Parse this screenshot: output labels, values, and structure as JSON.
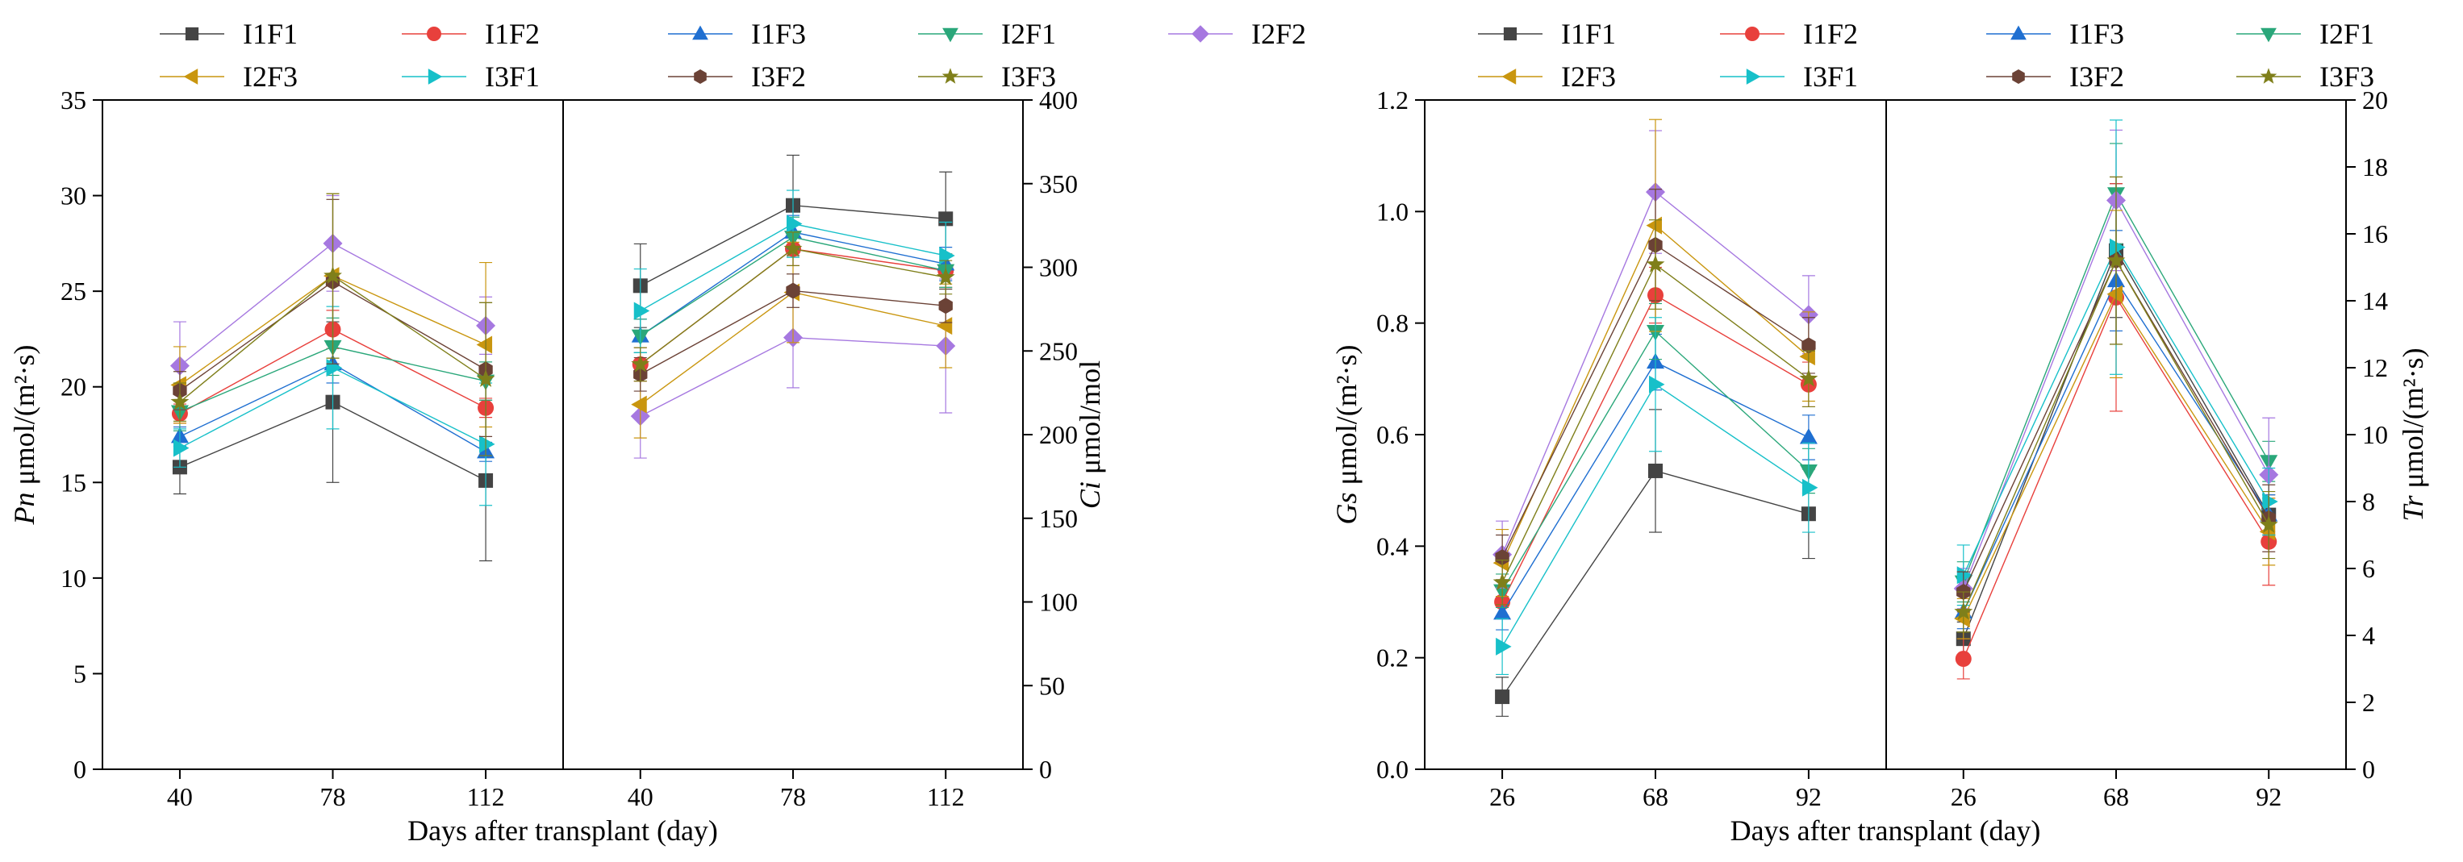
{
  "legend": {
    "series": [
      {
        "name": "I1F1",
        "color": "#444444",
        "marker": "square"
      },
      {
        "name": "I1F2",
        "color": "#e8403c",
        "marker": "circle"
      },
      {
        "name": "I1F3",
        "color": "#1f6fd1",
        "marker": "triangle-up"
      },
      {
        "name": "I2F1",
        "color": "#2aa77a",
        "marker": "triangle-down"
      },
      {
        "name": "I2F2",
        "color": "#a678e0",
        "marker": "diamond"
      },
      {
        "name": "I2F3",
        "color": "#c9960f",
        "marker": "triangle-left"
      },
      {
        "name": "I3F1",
        "color": "#17c0c9",
        "marker": "triangle-right"
      },
      {
        "name": "I3F2",
        "color": "#6b4236",
        "marker": "hexagon"
      },
      {
        "name": "I3F3",
        "color": "#7f7f1a",
        "marker": "star"
      }
    ]
  },
  "chart_data": [
    {
      "type": "line",
      "title": "",
      "xlabel": "Days after transplant (day)",
      "left_panel": {
        "ylabel_italic": "Pn",
        "ylabel_unit": "μmol/(m²·s)",
        "ylim": [
          0,
          35
        ],
        "yticks": [
          0,
          5,
          10,
          15,
          20,
          25,
          30,
          35
        ],
        "categories": [
          "40",
          "78",
          "112"
        ],
        "series": [
          {
            "name": "I1F1",
            "values": [
              15.8,
              19.2,
              15.1
            ],
            "errors": [
              1.4,
              4.2,
              4.2
            ]
          },
          {
            "name": "I1F2",
            "values": [
              18.6,
              23.0,
              18.9
            ],
            "errors": [
              0.5,
              1.0,
              0.5
            ]
          },
          {
            "name": "I1F3",
            "values": [
              17.4,
              21.2,
              16.6
            ],
            "errors": [
              0.5,
              1.0,
              0.5
            ]
          },
          {
            "name": "I2F1",
            "values": [
              18.7,
              22.1,
              20.3
            ],
            "errors": [
              1.0,
              1.5,
              1.0
            ]
          },
          {
            "name": "I2F2",
            "values": [
              21.1,
              27.5,
              23.2
            ],
            "errors": [
              2.3,
              2.5,
              1.5
            ]
          },
          {
            "name": "I2F3",
            "values": [
              20.1,
              25.8,
              22.2
            ],
            "errors": [
              2.0,
              4.3,
              4.3
            ]
          },
          {
            "name": "I3F1",
            "values": [
              16.8,
              21.0,
              17.0
            ],
            "errors": [
              1.0,
              3.2,
              3.2
            ]
          },
          {
            "name": "I3F2",
            "values": [
              19.8,
              25.5,
              20.9
            ],
            "errors": [
              1.0,
              4.3,
              3.5
            ]
          },
          {
            "name": "I3F3",
            "values": [
              19.2,
              25.8,
              20.4
            ],
            "errors": [
              1.0,
              4.3,
              4.0
            ]
          }
        ]
      },
      "right_panel": {
        "ylabel_italic": "Ci",
        "ylabel_unit": "μmol/mol",
        "ylim": [
          0,
          400
        ],
        "yticks": [
          0,
          50,
          100,
          150,
          200,
          250,
          300,
          350,
          400
        ],
        "categories": [
          "40",
          "78",
          "112"
        ],
        "series": [
          {
            "name": "I1F1",
            "values": [
              289,
              337,
              329
            ],
            "errors": [
              25,
              30,
              28
            ]
          },
          {
            "name": "I1F2",
            "values": [
              242,
              311,
              298
            ],
            "errors": [
              10,
              10,
              10
            ]
          },
          {
            "name": "I1F3",
            "values": [
              259,
              321,
              302
            ],
            "errors": [
              10,
              10,
              10
            ]
          },
          {
            "name": "I2F1",
            "values": [
              259,
              318,
              298
            ],
            "errors": [
              10,
              12,
              10
            ]
          },
          {
            "name": "I2F2",
            "values": [
              211,
              258,
              253
            ],
            "errors": [
              25,
              30,
              40
            ]
          },
          {
            "name": "I2F3",
            "values": [
              218,
              285,
              265
            ],
            "errors": [
              20,
              30,
              25
            ]
          },
          {
            "name": "I3F1",
            "values": [
              274,
              326,
              307
            ],
            "errors": [
              25,
              20,
              20
            ]
          },
          {
            "name": "I3F2",
            "values": [
              236,
              286,
              277
            ],
            "errors": [
              10,
              10,
              10
            ]
          },
          {
            "name": "I3F3",
            "values": [
              242,
              311,
              294
            ],
            "errors": [
              10,
              10,
              10
            ]
          }
        ]
      }
    },
    {
      "type": "line",
      "title": "",
      "xlabel": "Days after transplant (day)",
      "left_panel": {
        "ylabel_italic": "Gs",
        "ylabel_unit": "μmol/(m²·s)",
        "ylim": [
          0,
          1.2
        ],
        "yticks": [
          0.0,
          0.2,
          0.4,
          0.6,
          0.8,
          1.0,
          1.2
        ],
        "ytick_labels": [
          "0.0",
          "0.2",
          "0.4",
          "0.6",
          "0.8",
          "1.0",
          "1.2"
        ],
        "categories": [
          "26",
          "68",
          "92"
        ],
        "series": [
          {
            "name": "I1F1",
            "values": [
              0.13,
              0.535,
              0.458
            ],
            "errors": [
              0.035,
              0.11,
              0.08
            ]
          },
          {
            "name": "I1F2",
            "values": [
              0.3,
              0.85,
              0.69
            ],
            "errors": [
              0.03,
              0.05,
              0.04
            ]
          },
          {
            "name": "I1F3",
            "values": [
              0.28,
              0.73,
              0.595
            ],
            "errors": [
              0.03,
              0.05,
              0.04
            ]
          },
          {
            "name": "I2F1",
            "values": [
              0.32,
              0.785,
              0.535
            ],
            "errors": [
              0.03,
              0.05,
              0.04
            ]
          },
          {
            "name": "I2F2",
            "values": [
              0.385,
              1.035,
              0.815
            ],
            "errors": [
              0.06,
              0.11,
              0.07
            ]
          },
          {
            "name": "I2F3",
            "values": [
              0.37,
              0.975,
              0.74
            ],
            "errors": [
              0.06,
              0.19,
              0.08
            ]
          },
          {
            "name": "I3F1",
            "values": [
              0.22,
              0.69,
              0.505
            ],
            "errors": [
              0.05,
              0.12,
              0.08
            ]
          },
          {
            "name": "I3F2",
            "values": [
              0.38,
              0.94,
              0.76
            ],
            "errors": [
              0.04,
              0.1,
              0.05
            ]
          },
          {
            "name": "I3F3",
            "values": [
              0.335,
              0.905,
              0.7
            ],
            "errors": [
              0.04,
              0.08,
              0.05
            ]
          }
        ]
      },
      "right_panel": {
        "ylabel_italic": "Tr",
        "ylabel_unit": "μmol/(m²·s)",
        "ylim": [
          0,
          20
        ],
        "yticks": [
          0,
          2,
          4,
          6,
          8,
          10,
          12,
          14,
          16,
          18,
          20
        ],
        "categories": [
          "26",
          "68",
          "92"
        ],
        "series": [
          {
            "name": "I1F1",
            "values": [
              3.9,
              15.5,
              7.6
            ],
            "errors": [
              0.5,
              2.0,
              0.6
            ]
          },
          {
            "name": "I1F2",
            "values": [
              3.3,
              14.1,
              6.8
            ],
            "errors": [
              0.6,
              3.4,
              1.3
            ]
          },
          {
            "name": "I1F3",
            "values": [
              4.7,
              14.6,
              7.6
            ],
            "errors": [
              0.5,
              1.5,
              0.6
            ]
          },
          {
            "name": "I2F1",
            "values": [
              5.6,
              17.2,
              9.2
            ],
            "errors": [
              0.6,
              1.5,
              0.6
            ]
          },
          {
            "name": "I2F2",
            "values": [
              5.4,
              17.0,
              8.8
            ],
            "errors": [
              0.6,
              2.1,
              1.7
            ]
          },
          {
            "name": "I2F3",
            "values": [
              4.5,
              14.2,
              7.1
            ],
            "errors": [
              0.6,
              2.5,
              1.0
            ]
          },
          {
            "name": "I3F1",
            "values": [
              5.8,
              15.6,
              8.0
            ],
            "errors": [
              0.9,
              3.8,
              1.0
            ]
          },
          {
            "name": "I3F2",
            "values": [
              5.3,
              15.2,
              7.5
            ],
            "errors": [
              0.6,
              2.5,
              1.0
            ]
          },
          {
            "name": "I3F3",
            "values": [
              4.7,
              15.2,
              7.3
            ],
            "errors": [
              0.6,
              2.5,
              1.0
            ]
          }
        ]
      }
    }
  ]
}
